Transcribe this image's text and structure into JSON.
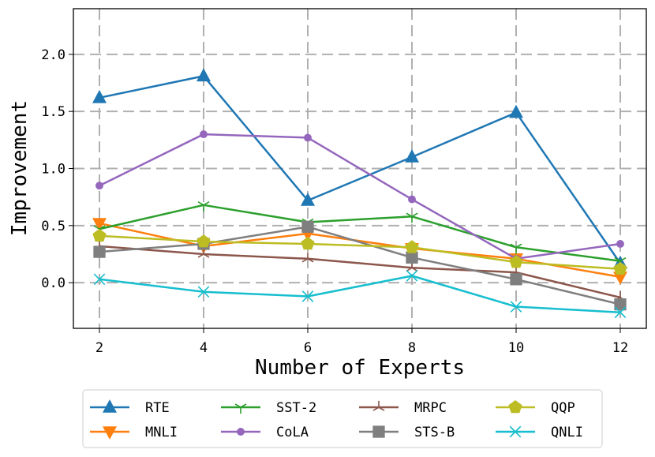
{
  "chart_data": {
    "type": "line",
    "title": "",
    "xlabel": "Number of Experts",
    "ylabel": "Improvement",
    "x": [
      2,
      4,
      6,
      8,
      10,
      12
    ],
    "x_ticks": [
      "2",
      "4",
      "6",
      "8",
      "10",
      "12"
    ],
    "y_ticks": [
      "0.0",
      "0.5",
      "1.0",
      "1.5",
      "2.0"
    ],
    "xlim": [
      1.5,
      12.5
    ],
    "ylim": [
      -0.4,
      2.4
    ],
    "grid": true,
    "legend_position": "bottom",
    "series": [
      {
        "name": "RTE",
        "color": "#1f77b4",
        "marker": "triangle-up",
        "values": [
          1.62,
          1.81,
          0.72,
          1.1,
          1.49,
          0.17
        ]
      },
      {
        "name": "MNLI",
        "color": "#ff7f0e",
        "marker": "triangle-down",
        "values": [
          0.52,
          0.32,
          0.43,
          0.3,
          0.21,
          0.05
        ]
      },
      {
        "name": "SST-2",
        "color": "#2ca02c",
        "marker": "tri-down",
        "values": [
          0.47,
          0.68,
          0.53,
          0.58,
          0.31,
          0.19
        ]
      },
      {
        "name": "CoLA",
        "color": "#9467bd",
        "marker": "circle",
        "values": [
          0.85,
          1.3,
          1.27,
          0.73,
          0.21,
          0.34
        ]
      },
      {
        "name": "MRPC",
        "color": "#8c564b",
        "marker": "tri-up",
        "values": [
          0.32,
          0.25,
          0.21,
          0.13,
          0.09,
          -0.13
        ]
      },
      {
        "name": "STS-B",
        "color": "#7f7f7f",
        "marker": "square",
        "values": [
          0.27,
          0.34,
          0.49,
          0.22,
          0.03,
          -0.19
        ]
      },
      {
        "name": "QQP",
        "color": "#bcbd22",
        "marker": "pentagon",
        "values": [
          0.41,
          0.36,
          0.34,
          0.31,
          0.18,
          0.12
        ]
      },
      {
        "name": "QNLI",
        "color": "#17becf",
        "marker": "x",
        "values": [
          0.03,
          -0.08,
          -0.12,
          0.06,
          -0.21,
          -0.26
        ]
      }
    ]
  }
}
